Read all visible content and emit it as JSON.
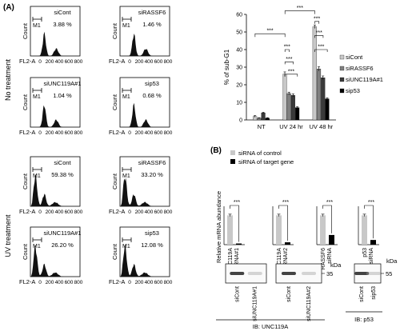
{
  "panel_a_label": "(A)",
  "panel_b_label": "(B)",
  "section_labels": {
    "no_treatment": "No treatment",
    "uv_treatment": "UV treatment"
  },
  "flow_axis": {
    "xlabel": "FL2-A",
    "ylabel": "Count",
    "ticks": [
      "0",
      "200",
      "400",
      "600",
      "800"
    ],
    "gate": "M1"
  },
  "flow_panels": [
    {
      "section": "no_treatment",
      "name": "siCont",
      "percent": "3.88 %"
    },
    {
      "section": "no_treatment",
      "name": "siRASSF6",
      "percent": "1.46 %"
    },
    {
      "section": "no_treatment",
      "name": "siUNC119A#1",
      "percent": "1.04 %"
    },
    {
      "section": "no_treatment",
      "name": "sip53",
      "percent": "0.68 %"
    },
    {
      "section": "uv_treatment",
      "name": "siCont",
      "percent": "59.38 %"
    },
    {
      "section": "uv_treatment",
      "name": "siRASSF6",
      "percent": "33.20 %"
    },
    {
      "section": "uv_treatment",
      "name": "siUNC119A#1",
      "percent": "26.20 %"
    },
    {
      "section": "uv_treatment",
      "name": "sip53",
      "percent": "12.08 %"
    }
  ],
  "colors": {
    "siCont": "#c8c8c8",
    "siRASSF6": "#808080",
    "siUNC119A": "#3a3a3a",
    "sip53": "#000000"
  },
  "chart_data": [
    {
      "type": "bar",
      "ylabel": "% of sub-G1",
      "ylim": [
        0,
        60
      ],
      "yticks": [
        0,
        10,
        20,
        30,
        40,
        50,
        60
      ],
      "categories": [
        "NT",
        "UV 24 hr",
        "UV 48 hr"
      ],
      "series": [
        {
          "name": "siCont",
          "values": [
            2,
            26,
            53
          ],
          "errors": [
            0.5,
            1.3,
            1.0
          ]
        },
        {
          "name": "siRASSF6",
          "values": [
            1,
            15,
            29
          ],
          "errors": [
            0.3,
            0.8,
            1.2
          ]
        },
        {
          "name": "siUNC119A#1",
          "values": [
            4,
            14,
            24
          ],
          "errors": [
            0.4,
            0.8,
            1.0
          ]
        },
        {
          "name": "sip53",
          "values": [
            1,
            7,
            12
          ],
          "errors": [
            0.3,
            0.5,
            0.6
          ]
        }
      ],
      "significance": "***",
      "legend": "right"
    },
    {
      "type": "bar",
      "ylabel": "Relative mRNA abundance",
      "ylim": [
        0,
        1.2
      ],
      "legend_entries": [
        "siRNA of control",
        "siRNA of target gene"
      ],
      "groups": [
        {
          "label_lines": [
            "UNC119A",
            "siRNA#1"
          ],
          "values": [
            1.0,
            0.04
          ]
        },
        {
          "label_lines": [
            "UNC119A",
            "siRNA#2"
          ],
          "values": [
            1.0,
            0.08
          ]
        },
        {
          "label_lines": [
            "RASSF6",
            "siRNA"
          ],
          "values": [
            1.0,
            0.33
          ]
        },
        {
          "label_lines": [
            "p53",
            "siRNA"
          ],
          "values": [
            1.0,
            0.16
          ]
        }
      ],
      "significance": "***"
    }
  ],
  "western": {
    "kda_label": "kDa",
    "blots": [
      {
        "lanes": [
          "siCont",
          "siUNC119A#1"
        ],
        "marker": ""
      },
      {
        "lanes": [
          "siCont",
          "siUNC119A#2"
        ],
        "marker": "35"
      },
      {
        "lanes": [
          "siCont",
          "sip53"
        ],
        "marker": "55"
      }
    ],
    "ib_unc": "IB: UNC119A",
    "ib_p53": "IB: p53"
  }
}
